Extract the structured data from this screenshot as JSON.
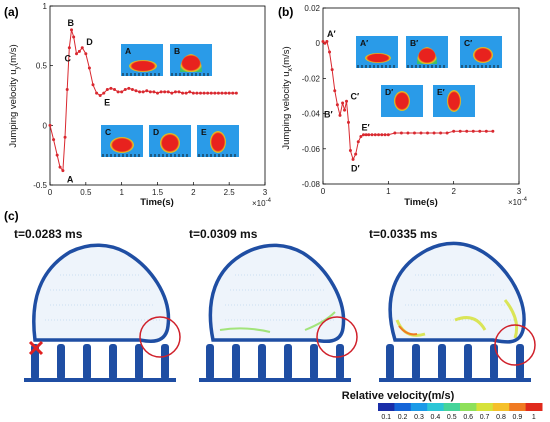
{
  "panels": {
    "a": "(a)",
    "b": "(b)",
    "c": "(c)"
  },
  "chart_data": [
    {
      "type": "line",
      "panel": "(a)",
      "xlabel": "Time(s)",
      "ylabel": "Jumping velocity u",
      "ylabel_sub": "y",
      "ylabel_unit": "(m/s)",
      "x_exponent": "×10",
      "x_exponent_power": "-4",
      "xlim": [
        0,
        3
      ],
      "ylim": [
        -0.5,
        1
      ],
      "xticks": [
        0,
        0.5,
        1,
        1.5,
        2,
        2.5,
        3
      ],
      "yticks": [
        -0.5,
        0,
        0.5,
        1
      ],
      "x": [
        0,
        0.05,
        0.1,
        0.14,
        0.18,
        0.21,
        0.24,
        0.27,
        0.3,
        0.33,
        0.37,
        0.41,
        0.45,
        0.5,
        0.55,
        0.6,
        0.65,
        0.7,
        0.75,
        0.8,
        0.85,
        0.9,
        0.95,
        1.0,
        1.05,
        1.1,
        1.15,
        1.2,
        1.25,
        1.3,
        1.35,
        1.4,
        1.45,
        1.5,
        1.55,
        1.6,
        1.65,
        1.7,
        1.75,
        1.8,
        1.85,
        1.9,
        1.95,
        2.0,
        2.05,
        2.1,
        2.15,
        2.2,
        2.25,
        2.3,
        2.35,
        2.4,
        2.45,
        2.5,
        2.55,
        2.6
      ],
      "y": [
        0,
        -0.12,
        -0.25,
        -0.35,
        -0.38,
        -0.1,
        0.3,
        0.65,
        0.8,
        0.74,
        0.6,
        0.62,
        0.65,
        0.6,
        0.48,
        0.34,
        0.27,
        0.25,
        0.27,
        0.3,
        0.31,
        0.3,
        0.28,
        0.28,
        0.3,
        0.31,
        0.3,
        0.29,
        0.28,
        0.28,
        0.29,
        0.28,
        0.28,
        0.27,
        0.28,
        0.28,
        0.28,
        0.27,
        0.28,
        0.28,
        0.27,
        0.27,
        0.28,
        0.27,
        0.27,
        0.27,
        0.27,
        0.27,
        0.27,
        0.27,
        0.27,
        0.27,
        0.27,
        0.27,
        0.27,
        0.27
      ],
      "points": [
        {
          "label": "A",
          "x": 0.18,
          "y": -0.38
        },
        {
          "label": "B",
          "x": 0.3,
          "y": 0.8
        },
        {
          "label": "C",
          "x": 0.37,
          "y": 0.6
        },
        {
          "label": "D",
          "x": 0.45,
          "y": 0.65
        },
        {
          "label": "E",
          "x": 0.7,
          "y": 0.25
        }
      ],
      "insets": [
        "A",
        "B",
        "C",
        "D",
        "E"
      ]
    },
    {
      "type": "line",
      "panel": "(b)",
      "xlabel": "Time(s)",
      "ylabel": "Jumping velocity u",
      "ylabel_sub": "x",
      "ylabel_unit": "(m/s)",
      "x_exponent": "×10",
      "x_exponent_power": "-4",
      "xlim": [
        0,
        3
      ],
      "ylim": [
        -0.08,
        0.02
      ],
      "xticks": [
        0,
        1,
        2,
        3
      ],
      "yticks": [
        0.02,
        0,
        -0.02,
        -0.04,
        -0.06,
        -0.08
      ],
      "x": [
        0,
        0.03,
        0.06,
        0.1,
        0.14,
        0.18,
        0.22,
        0.26,
        0.3,
        0.33,
        0.36,
        0.39,
        0.42,
        0.46,
        0.5,
        0.54,
        0.58,
        0.62,
        0.66,
        0.7,
        0.75,
        0.8,
        0.85,
        0.9,
        0.95,
        1.0,
        1.1,
        1.2,
        1.3,
        1.4,
        1.5,
        1.6,
        1.7,
        1.8,
        1.9,
        2.0,
        2.1,
        2.2,
        2.3,
        2.4,
        2.5,
        2.6
      ],
      "y": [
        0.001,
        0.0,
        0.001,
        -0.005,
        -0.015,
        -0.027,
        -0.035,
        -0.041,
        -0.034,
        -0.038,
        -0.033,
        -0.045,
        -0.061,
        -0.066,
        -0.063,
        -0.056,
        -0.053,
        -0.052,
        -0.052,
        -0.052,
        -0.052,
        -0.052,
        -0.052,
        -0.052,
        -0.052,
        -0.052,
        -0.051,
        -0.051,
        -0.051,
        -0.051,
        -0.051,
        -0.051,
        -0.051,
        -0.051,
        -0.051,
        -0.05,
        -0.05,
        -0.05,
        -0.05,
        -0.05,
        -0.05,
        -0.05
      ],
      "points": [
        {
          "label": "A′",
          "x": 0.03,
          "y": 0.0
        },
        {
          "label": "B′",
          "x": 0.26,
          "y": -0.041
        },
        {
          "label": "C′",
          "x": 0.36,
          "y": -0.033
        },
        {
          "label": "D′",
          "x": 0.46,
          "y": -0.066
        },
        {
          "label": "E′",
          "x": 0.62,
          "y": -0.052
        }
      ],
      "insets": [
        "A′",
        "B′",
        "C′",
        "D′",
        "E′"
      ]
    }
  ],
  "snapshots": [
    {
      "time": "t=0.0283 ms"
    },
    {
      "time": "t=0.0309 ms"
    },
    {
      "time": "t=0.0335 ms"
    }
  ],
  "colorbar": {
    "title": "Relative velocity(m/s)",
    "ticks": [
      "0.1",
      "0.2",
      "0.3",
      "0.4",
      "0.5",
      "0.6",
      "0.7",
      "0.8",
      "0.9",
      "1"
    ],
    "colors": [
      "#1a2ea8",
      "#1565d8",
      "#1a9ae8",
      "#2cc6d6",
      "#45d49a",
      "#8ee05a",
      "#d6e23a",
      "#f5c02a",
      "#f07a22",
      "#e02a1c"
    ]
  },
  "colors": {
    "curve": "#d9282f",
    "droplet_outline": "#1f4ea3",
    "inset_bg": "#2a9be8",
    "inset_drop": "#e8221e"
  }
}
